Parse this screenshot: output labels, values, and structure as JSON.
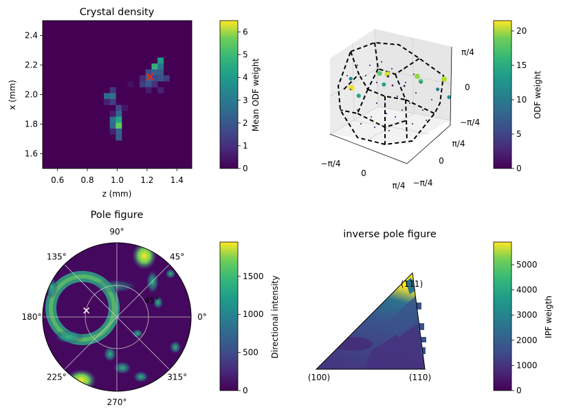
{
  "chart_data": [
    {
      "type": "heatmap",
      "title": "Crystal density",
      "xlabel": "z (mm)",
      "ylabel": "x (mm)",
      "xlim": [
        0.5,
        1.5
      ],
      "ylim": [
        1.5,
        2.5
      ],
      "xticks": [
        "0.6",
        "0.8",
        "1.0",
        "1.2",
        "1.4"
      ],
      "yticks": [
        "1.6",
        "1.8",
        "2.0",
        "2.2",
        "2.4"
      ],
      "grid": false,
      "colorbar": {
        "label": "Mean ODF weight",
        "range": [
          0,
          6.5
        ],
        "ticks": [
          "0",
          "1",
          "2",
          "3",
          "4",
          "5",
          "6"
        ],
        "colormap": "viridis"
      },
      "cells": [
        {
          "z": 1.29,
          "x": 2.23,
          "v": 3.5
        },
        {
          "z": 1.29,
          "x": 2.19,
          "v": 2.5
        },
        {
          "z": 1.25,
          "x": 2.19,
          "v": 4.2
        },
        {
          "z": 1.29,
          "x": 2.15,
          "v": 1.8
        },
        {
          "z": 1.25,
          "x": 2.15,
          "v": 2.0
        },
        {
          "z": 1.21,
          "x": 2.15,
          "v": 1.5
        },
        {
          "z": 1.33,
          "x": 2.11,
          "v": 1.2
        },
        {
          "z": 1.29,
          "x": 2.11,
          "v": 1.6
        },
        {
          "z": 1.25,
          "x": 2.11,
          "v": 1.4
        },
        {
          "z": 1.21,
          "x": 2.11,
          "v": 2.2
        },
        {
          "z": 1.17,
          "x": 2.11,
          "v": 0.8
        },
        {
          "z": 1.25,
          "x": 2.07,
          "v": 0.9
        },
        {
          "z": 1.21,
          "x": 2.07,
          "v": 1.7
        },
        {
          "z": 1.17,
          "x": 2.07,
          "v": 1.2
        },
        {
          "z": 1.29,
          "x": 2.03,
          "v": 0.6
        },
        {
          "z": 1.21,
          "x": 2.03,
          "v": 0.5
        },
        {
          "z": 0.97,
          "x": 2.03,
          "v": 1.0
        },
        {
          "z": 0.93,
          "x": 1.99,
          "v": 2.2
        },
        {
          "z": 0.97,
          "x": 1.99,
          "v": 2.4
        },
        {
          "z": 0.97,
          "x": 1.95,
          "v": 1.2
        },
        {
          "z": 0.93,
          "x": 1.95,
          "v": 0.6
        },
        {
          "z": 1.01,
          "x": 1.91,
          "v": 1.4
        },
        {
          "z": 1.01,
          "x": 1.87,
          "v": 2.2
        },
        {
          "z": 0.97,
          "x": 1.87,
          "v": 0.5
        },
        {
          "z": 0.97,
          "x": 1.83,
          "v": 2.4
        },
        {
          "z": 1.01,
          "x": 1.83,
          "v": 3.8
        },
        {
          "z": 0.97,
          "x": 1.79,
          "v": 2.1
        },
        {
          "z": 1.01,
          "x": 1.79,
          "v": 4.9
        },
        {
          "z": 1.01,
          "x": 1.75,
          "v": 2.0
        },
        {
          "z": 0.97,
          "x": 1.75,
          "v": 0.6
        },
        {
          "z": 1.01,
          "x": 1.71,
          "v": 1.9
        },
        {
          "z": 1.09,
          "x": 2.07,
          "v": 0.3
        },
        {
          "z": 1.05,
          "x": 1.91,
          "v": 0.4
        }
      ],
      "marker": {
        "z": 1.22,
        "x": 2.12,
        "symbol": "x",
        "color": "#e8261f"
      }
    },
    {
      "type": "scatter",
      "projection": "3d",
      "colorbar": {
        "label": "ODF weight",
        "range": [
          0,
          21.5
        ],
        "ticks": [
          "0",
          "5",
          "10",
          "15",
          "20"
        ],
        "colormap": "viridis"
      },
      "xticks": [
        "−π/4",
        "0",
        "π/4"
      ],
      "yticks": [
        "−π/4",
        "0",
        "π/4"
      ],
      "zticks": [
        "−π/4",
        "0",
        "π/4"
      ],
      "outline": "dashed black fundamental-zone polyhedron",
      "points": [
        {
          "x": 0.35,
          "y": -0.6,
          "z": 0.62,
          "v": 12
        },
        {
          "x": 0.1,
          "y": -0.2,
          "z": 0.55,
          "v": 20
        },
        {
          "x": 0.42,
          "y": 0.15,
          "z": 0.45,
          "v": 18
        },
        {
          "x": 0.6,
          "y": 0.6,
          "z": 0.2,
          "v": 19
        },
        {
          "x": 0.25,
          "y": 0.45,
          "z": 0.05,
          "v": 15
        },
        {
          "x": -0.3,
          "y": 0.1,
          "z": 0.2,
          "v": 16
        },
        {
          "x": -0.55,
          "y": -0.3,
          "z": -0.1,
          "v": 21
        },
        {
          "x": -0.2,
          "y": -0.55,
          "z": 0.0,
          "v": 13
        },
        {
          "x": -0.4,
          "y": -0.5,
          "z": 0.35,
          "v": 10
        },
        {
          "x": 0.62,
          "y": 0.7,
          "z": -0.35,
          "v": 11
        },
        {
          "x": 0.55,
          "y": 0.5,
          "z": -0.05,
          "v": 9
        },
        {
          "x": -0.05,
          "y": 0.0,
          "z": 0.3,
          "v": 4
        },
        {
          "x": 0.2,
          "y": 0.1,
          "z": 0.1,
          "v": 2
        },
        {
          "x": -0.2,
          "y": 0.3,
          "z": -0.2,
          "v": 1
        }
      ]
    },
    {
      "type": "heatmap",
      "projection": "polar",
      "title": "Pole figure",
      "angle_ticks": [
        "0°",
        "45°",
        "90°",
        "135°",
        "180°",
        "225°",
        "270°",
        "315°"
      ],
      "radial_ticks": [
        "45°"
      ],
      "colorbar": {
        "label": "Directional intensity",
        "range": [
          0,
          1950
        ],
        "ticks": [
          "0",
          "500",
          "1000",
          "1500"
        ],
        "colormap": "viridis"
      },
      "marker": {
        "angle": 168,
        "r": 0.42,
        "symbol": "x",
        "color": "#ffffff"
      },
      "features": [
        {
          "name": "ring",
          "cx": -0.48,
          "cy": 0.1,
          "r": 0.38,
          "v": 1100
        },
        {
          "name": "top-right arc",
          "angle": 70,
          "r": 0.98,
          "v": 1900
        },
        {
          "name": "bottom-left blob",
          "angle": 235,
          "r": 0.95,
          "v": 1950
        }
      ]
    },
    {
      "type": "heatmap",
      "projection": "inverse pole figure",
      "title": "inverse pole figure",
      "corner_labels": [
        "(100)",
        "(110)",
        "(111)"
      ],
      "colorbar": {
        "label": "IPF weigth",
        "range": [
          0,
          5900
        ],
        "ticks": [
          "0",
          "1000",
          "2000",
          "3000",
          "4000",
          "5000"
        ],
        "colormap": "viridis"
      },
      "hotspot": {
        "corner": "(111)",
        "v": 5900
      }
    }
  ]
}
